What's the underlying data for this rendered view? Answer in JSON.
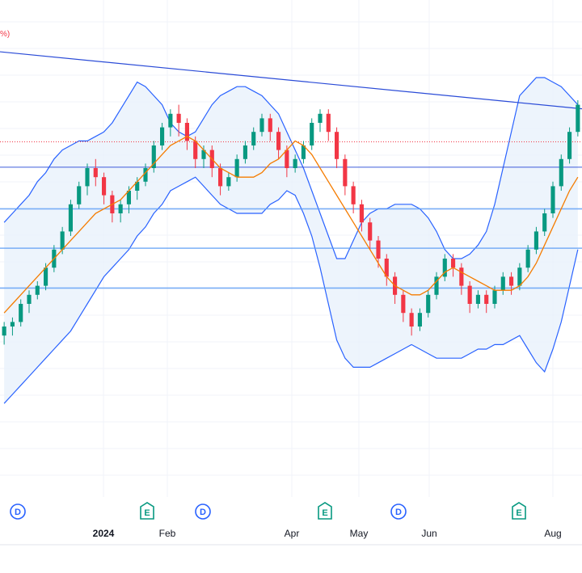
{
  "chart_data": {
    "type": "candlestick",
    "x_axis": {
      "tick_labels": [
        "2024",
        "Feb",
        "Apr",
        "May",
        "Jun",
        "Aug"
      ]
    },
    "corner_label": "%)",
    "colors": {
      "up": "#089981",
      "down": "#f23645",
      "sma": "#f57c00",
      "band": "#2962ff",
      "band_fill": "#e8f1fb",
      "levels": "#5b9cf5",
      "trendline": "#2a4bd7",
      "dotted": "#f23645",
      "dividend": "#2962ff",
      "earnings": "#089981",
      "grid": "#f0f3fa"
    },
    "price_scale": {
      "min": 0,
      "max": 100
    },
    "horizontal_levels": [
      70.2,
      61.0,
      52.3,
      43.5
    ],
    "dotted_level": 75.8,
    "trendline": {
      "start": 95.7,
      "end": 83.1
    },
    "sma": [
      38,
      40,
      42,
      44,
      46,
      48,
      50,
      52,
      54,
      56,
      58,
      60,
      61,
      62,
      63,
      65,
      67,
      69,
      71,
      73,
      75,
      76,
      77,
      76,
      74,
      72,
      70,
      69,
      68,
      68,
      68,
      69,
      71,
      72,
      74,
      76,
      75,
      73,
      70,
      67,
      64,
      61,
      58,
      55,
      52,
      49,
      46,
      44,
      43,
      42,
      42,
      43,
      45,
      47,
      48,
      47,
      46,
      45,
      44,
      43,
      43,
      43,
      44,
      46,
      49,
      53,
      57,
      61,
      65,
      68
    ],
    "band_upper": [
      58,
      60,
      62,
      64,
      67,
      69,
      72,
      74,
      75,
      76,
      76,
      77,
      78,
      80,
      83,
      86,
      89,
      88,
      86,
      84,
      80,
      78,
      77,
      78,
      81,
      84,
      86,
      87,
      88,
      88,
      87,
      86,
      84,
      82,
      78,
      74,
      70,
      65,
      60,
      55,
      50,
      50,
      54,
      58,
      60,
      61,
      61,
      62,
      62,
      62,
      61,
      59,
      56,
      52,
      50,
      50,
      51,
      53,
      56,
      62,
      70,
      78,
      86,
      88,
      90,
      90,
      89,
      88,
      86,
      84
    ],
    "band_lower": [
      18,
      20,
      22,
      24,
      26,
      28,
      30,
      32,
      34,
      37,
      40,
      43,
      46,
      48,
      50,
      52,
      55,
      57,
      60,
      62,
      65,
      66,
      67,
      68,
      66,
      64,
      62,
      61,
      60,
      60,
      60,
      60,
      62,
      63,
      65,
      64,
      60,
      55,
      48,
      40,
      32,
      28,
      26,
      26,
      26,
      27,
      28,
      29,
      30,
      31,
      30,
      29,
      28,
      28,
      28,
      28,
      29,
      30,
      30,
      31,
      31,
      32,
      33,
      30,
      27,
      25,
      30,
      36,
      44,
      52
    ],
    "candles": [
      [
        33,
        35,
        31,
        36
      ],
      [
        35,
        36,
        33,
        37
      ],
      [
        36,
        40,
        35,
        41
      ],
      [
        40,
        42,
        38,
        43
      ],
      [
        42,
        44,
        41,
        45
      ],
      [
        44,
        48,
        43,
        49
      ],
      [
        48,
        52,
        47,
        53
      ],
      [
        52,
        56,
        51,
        57
      ],
      [
        56,
        62,
        55,
        63
      ],
      [
        62,
        66,
        61,
        67
      ],
      [
        66,
        70,
        64,
        71
      ],
      [
        70,
        68,
        66,
        72
      ],
      [
        68,
        64,
        62,
        69
      ],
      [
        64,
        60,
        58,
        65
      ],
      [
        60,
        62,
        58,
        63
      ],
      [
        62,
        65,
        60,
        66
      ],
      [
        65,
        67,
        63,
        68
      ],
      [
        67,
        70,
        66,
        71
      ],
      [
        70,
        75,
        69,
        76
      ],
      [
        75,
        79,
        74,
        80
      ],
      [
        79,
        82,
        77,
        83
      ],
      [
        82,
        80,
        77,
        84
      ],
      [
        80,
        76,
        74,
        81
      ],
      [
        76,
        72,
        70,
        77
      ],
      [
        72,
        74,
        70,
        75
      ],
      [
        74,
        70,
        68,
        75
      ],
      [
        70,
        66,
        64,
        71
      ],
      [
        66,
        68,
        65,
        69
      ],
      [
        68,
        72,
        67,
        73
      ],
      [
        72,
        75,
        71,
        76
      ],
      [
        75,
        78,
        74,
        79
      ],
      [
        78,
        81,
        77,
        82
      ],
      [
        81,
        78,
        76,
        82
      ],
      [
        78,
        74,
        72,
        79
      ],
      [
        74,
        70,
        68,
        75
      ],
      [
        70,
        72,
        69,
        73
      ],
      [
        72,
        75,
        71,
        76
      ],
      [
        75,
        80,
        74,
        81
      ],
      [
        80,
        82,
        78,
        83
      ],
      [
        82,
        78,
        76,
        83
      ],
      [
        78,
        72,
        70,
        79
      ],
      [
        72,
        66,
        64,
        73
      ],
      [
        66,
        62,
        60,
        67
      ],
      [
        62,
        58,
        56,
        63
      ],
      [
        58,
        54,
        52,
        59
      ],
      [
        54,
        50,
        48,
        55
      ],
      [
        50,
        46,
        44,
        51
      ],
      [
        46,
        42,
        40,
        47
      ],
      [
        42,
        38,
        36,
        43
      ],
      [
        38,
        35,
        33,
        39
      ],
      [
        35,
        38,
        34,
        39
      ],
      [
        38,
        42,
        37,
        43
      ],
      [
        42,
        46,
        41,
        47
      ],
      [
        46,
        50,
        45,
        51
      ],
      [
        50,
        48,
        46,
        51
      ],
      [
        48,
        44,
        42,
        49
      ],
      [
        44,
        40,
        38,
        45
      ],
      [
        40,
        42,
        39,
        43
      ],
      [
        42,
        40,
        38,
        43
      ],
      [
        40,
        43,
        39,
        44
      ],
      [
        43,
        46,
        42,
        47
      ],
      [
        46,
        44,
        42,
        47
      ],
      [
        44,
        48,
        43,
        49
      ],
      [
        48,
        52,
        47,
        53
      ],
      [
        52,
        56,
        51,
        57
      ],
      [
        56,
        60,
        55,
        61
      ],
      [
        60,
        66,
        59,
        67
      ],
      [
        66,
        72,
        65,
        73
      ],
      [
        72,
        78,
        71,
        79
      ],
      [
        78,
        84,
        77,
        85
      ]
    ],
    "dividend_marker_positions": [
      22,
      251,
      493
    ],
    "earnings_marker_positions": [
      182,
      402,
      642
    ]
  }
}
